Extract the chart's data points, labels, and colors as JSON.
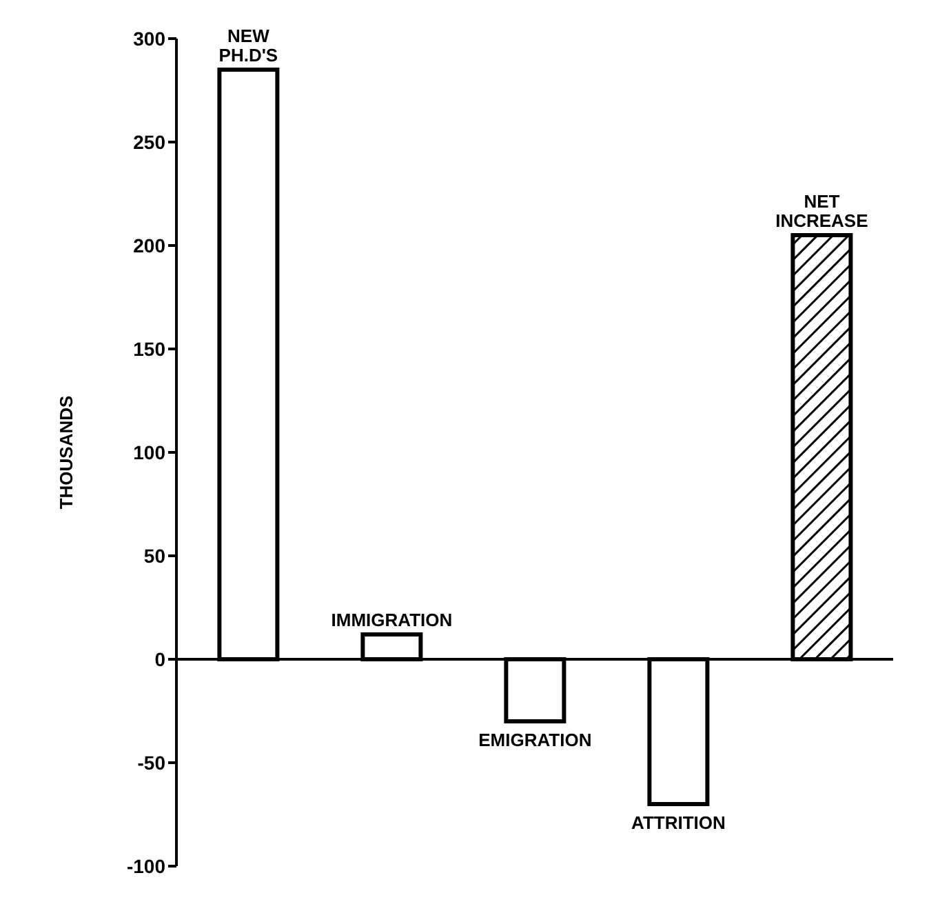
{
  "chart_data": {
    "type": "bar",
    "ylabel": "THOUSANDS",
    "categories": [
      "NEW PH.D'S",
      "IMMIGRATION",
      "EMIGRATION",
      "ATTRITION",
      "NET INCREASE"
    ],
    "values": [
      285,
      12,
      -30,
      -70,
      205
    ],
    "colors": [
      "#ffffff",
      "#ffffff",
      "#ffffff",
      "#ffffff",
      "#000000"
    ],
    "ylim": [
      -100,
      300
    ],
    "yticks": [
      -100,
      -50,
      0,
      50,
      100,
      150,
      200,
      250,
      300
    ],
    "legend": false,
    "tick_labels": "y"
  }
}
